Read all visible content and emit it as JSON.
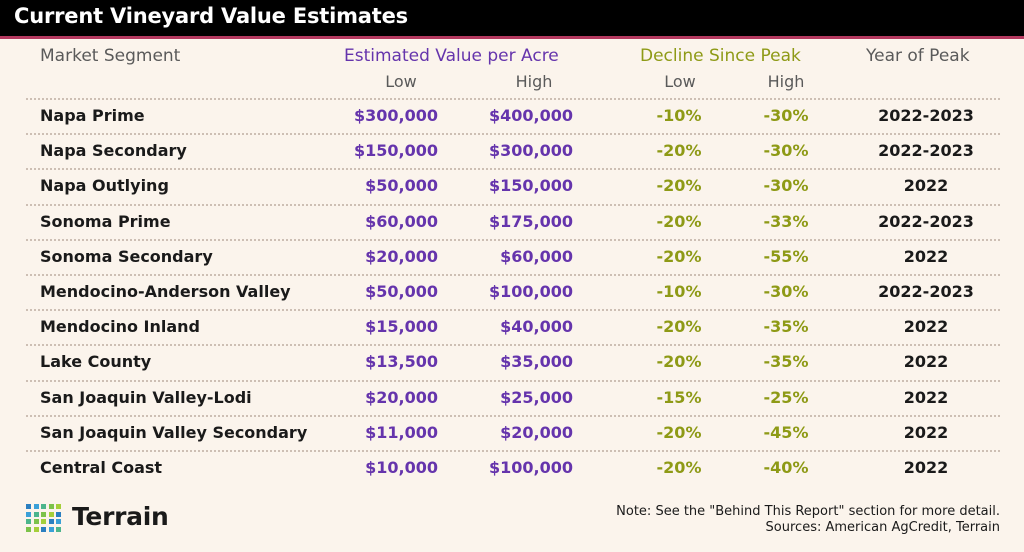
{
  "title": "Current Vineyard Value Estimates",
  "headers": {
    "segment": "Market Segment",
    "estimated_value": "Estimated Value per Acre",
    "decline": "Decline Since Peak",
    "year": "Year of Peak",
    "low": "Low",
    "high": "High"
  },
  "colors": {
    "purple": "#6534ac",
    "olive": "#8e9a16",
    "accent": "#b5395f",
    "background": "#fbf4ec"
  },
  "chart_data": {
    "type": "table",
    "columns": [
      "Market Segment",
      "Estimated Value per Acre Low",
      "Estimated Value per Acre High",
      "Decline Since Peak Low",
      "Decline Since Peak High",
      "Year of Peak"
    ],
    "rows": [
      {
        "segment": "Napa Prime",
        "low": "$300,000",
        "high": "$400,000",
        "decline_low": "-10%",
        "decline_high": "-30%",
        "year": "2022-2023"
      },
      {
        "segment": "Napa Secondary",
        "low": "$150,000",
        "high": "$300,000",
        "decline_low": "-20%",
        "decline_high": "-30%",
        "year": "2022-2023"
      },
      {
        "segment": "Napa Outlying",
        "low": "$50,000",
        "high": "$150,000",
        "decline_low": "-20%",
        "decline_high": "-30%",
        "year": "2022"
      },
      {
        "segment": "Sonoma Prime",
        "low": "$60,000",
        "high": "$175,000",
        "decline_low": "-20%",
        "decline_high": "-33%",
        "year": "2022-2023"
      },
      {
        "segment": "Sonoma Secondary",
        "low": "$20,000",
        "high": "$60,000",
        "decline_low": "-20%",
        "decline_high": "-55%",
        "year": "2022"
      },
      {
        "segment": "Mendocino-Anderson Valley",
        "low": "$50,000",
        "high": "$100,000",
        "decline_low": "-10%",
        "decline_high": "-30%",
        "year": "2022-2023"
      },
      {
        "segment": "Mendocino Inland",
        "low": "$15,000",
        "high": "$40,000",
        "decline_low": "-20%",
        "decline_high": "-35%",
        "year": "2022"
      },
      {
        "segment": "Lake County",
        "low": "$13,500",
        "high": "$35,000",
        "decline_low": "-20%",
        "decline_high": "-35%",
        "year": "2022"
      },
      {
        "segment": "San Joaquin Valley-Lodi",
        "low": "$20,000",
        "high": "$25,000",
        "decline_low": "-15%",
        "decline_high": "-25%",
        "year": "2022"
      },
      {
        "segment": "San Joaquin Valley Secondary",
        "low": "$11,000",
        "high": "$20,000",
        "decline_low": "-20%",
        "decline_high": "-45%",
        "year": "2022"
      },
      {
        "segment": "Central Coast",
        "low": "$10,000",
        "high": "$100,000",
        "decline_low": "-20%",
        "decline_high": "-40%",
        "year": "2022"
      }
    ]
  },
  "footer": {
    "logo_text": "Terrain",
    "logo_icon": "terrain-dot-grid-icon",
    "note": "Note: See the \"Behind This Report\" section for more detail.",
    "sources": "Sources: American AgCredit, Terrain"
  }
}
